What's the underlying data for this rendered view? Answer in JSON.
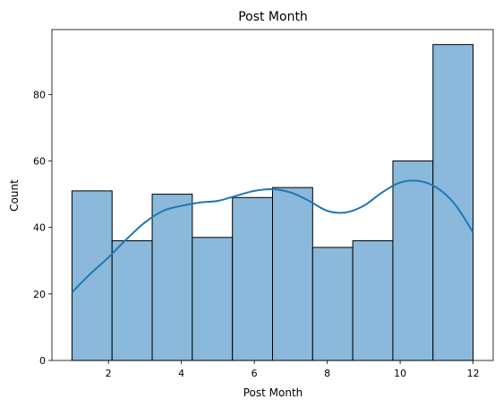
{
  "chart_data": {
    "type": "bar",
    "title": "Post Month",
    "xlabel": "Post Month",
    "ylabel": "Count",
    "xlim": [
      0.45,
      12.55
    ],
    "ylim": [
      0,
      99.5
    ],
    "bins": [
      {
        "x0": 1.0,
        "x1": 2.1,
        "count": 51
      },
      {
        "x0": 2.1,
        "x1": 3.2,
        "count": 36
      },
      {
        "x0": 3.2,
        "x1": 4.3,
        "count": 50
      },
      {
        "x0": 4.3,
        "x1": 5.4,
        "count": 37
      },
      {
        "x0": 5.4,
        "x1": 6.5,
        "count": 49
      },
      {
        "x0": 6.5,
        "x1": 7.6,
        "count": 52
      },
      {
        "x0": 7.6,
        "x1": 8.7,
        "count": 34
      },
      {
        "x0": 8.7,
        "x1": 9.8,
        "count": 36
      },
      {
        "x0": 9.8,
        "x1": 10.9,
        "count": 60
      },
      {
        "x0": 10.9,
        "x1": 12.0,
        "count": 95
      }
    ],
    "kde": {
      "x": [
        1.0,
        1.5,
        2.0,
        2.5,
        3.0,
        3.5,
        4.0,
        4.5,
        5.0,
        5.5,
        6.0,
        6.5,
        7.0,
        7.5,
        8.0,
        8.5,
        9.0,
        9.5,
        10.0,
        10.5,
        11.0,
        11.5,
        12.0
      ],
      "y": [
        20.5,
        26,
        31,
        36.5,
        41.5,
        45,
        46.5,
        47.5,
        48,
        49.5,
        51,
        51.5,
        50.5,
        48,
        45,
        44.5,
        46.5,
        50.5,
        53.5,
        54,
        52,
        47,
        38.5
      ]
    },
    "xticks": [
      2,
      4,
      6,
      8,
      10,
      12
    ],
    "yticks": [
      0,
      20,
      40,
      60,
      80
    ],
    "colors": {
      "bar_fill": "#8ab9db",
      "bar_edge": "#000000",
      "kde_line": "#1f77b4"
    },
    "grid": false,
    "legend": "none"
  }
}
